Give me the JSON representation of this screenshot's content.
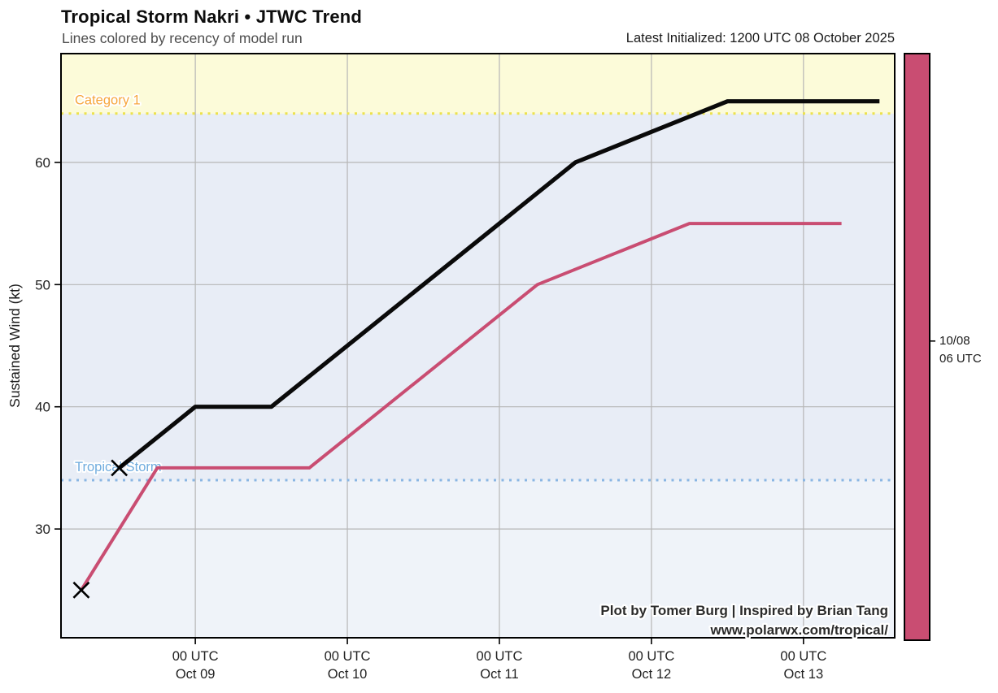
{
  "header": {
    "title": "Tropical Storm Nakri • JTWC Trend",
    "subtitle": "Lines colored by recency of model run",
    "latest_initialized": "Latest Initialized: 1200 UTC 08 October 2025"
  },
  "chart_data": {
    "type": "line",
    "title": "Tropical Storm Nakri • JTWC Trend",
    "xlabel": "",
    "ylabel": "Sustained Wind (kt)",
    "x_unit": "hours since 2025-10-08 00:00 UTC",
    "xlim": [
      2.8,
      134.4
    ],
    "ylim": [
      21.1,
      68.9
    ],
    "grid": true,
    "grid_color": "#b6b6b6",
    "x_ticks": [
      {
        "hour": 24,
        "line1": "00 UTC",
        "line2": "Oct 09"
      },
      {
        "hour": 48,
        "line1": "00 UTC",
        "line2": "Oct 10"
      },
      {
        "hour": 72,
        "line1": "00 UTC",
        "line2": "Oct 11"
      },
      {
        "hour": 96,
        "line1": "00 UTC",
        "line2": "Oct 12"
      },
      {
        "hour": 120,
        "line1": "00 UTC",
        "line2": "Oct 13"
      }
    ],
    "y_ticks": [
      30,
      40,
      50,
      60
    ],
    "series": [
      {
        "name": "JTWC run initialized 10/08 06 UTC",
        "color": "#c94d72",
        "line_width": 4,
        "start_marker": "x",
        "marker_color": "#000000",
        "points": [
          {
            "hour": 6,
            "kt": 25
          },
          {
            "hour": 18,
            "kt": 35
          },
          {
            "hour": 42,
            "kt": 35
          },
          {
            "hour": 78,
            "kt": 50
          },
          {
            "hour": 102,
            "kt": 55
          },
          {
            "hour": 126,
            "kt": 55
          }
        ]
      },
      {
        "name": "JTWC run initialized 10/08 12 UTC (latest)",
        "color": "#0a0a0a",
        "line_width": 5.2,
        "start_marker": "x",
        "marker_color": "#000000",
        "points": [
          {
            "hour": 12,
            "kt": 35
          },
          {
            "hour": 24,
            "kt": 40
          },
          {
            "hour": 36,
            "kt": 40
          },
          {
            "hour": 84,
            "kt": 60
          },
          {
            "hour": 108,
            "kt": 65
          },
          {
            "hour": 132,
            "kt": 65
          }
        ]
      }
    ],
    "zones": [
      {
        "name": "below-tropical-storm",
        "from_kt": 21.1,
        "to_kt": 34,
        "fill": "#eff3f9",
        "label": "",
        "label_color": "",
        "boundary_dot_color": ""
      },
      {
        "name": "tropical-storm",
        "from_kt": 34,
        "to_kt": 64,
        "fill": "#e8edf6",
        "label": "Tropical Storm",
        "label_color": "#70acde",
        "boundary_dot_color": "#8ab6e3"
      },
      {
        "name": "category-1",
        "from_kt": 64,
        "to_kt": 68.9,
        "fill": "#fcfbd9",
        "label": "Category 1",
        "label_color": "#f7a63c",
        "boundary_dot_color": "#ece24d"
      }
    ],
    "colorbar": {
      "fill": "#c94d72",
      "tick_label_line1": "10/08",
      "tick_label_line2": "06 UTC"
    },
    "legend_position": "none"
  },
  "attribution": {
    "line1": "Plot by Tomer Burg | Inspired by Brian Tang",
    "line2": "www.polarwx.com/tropical/"
  }
}
